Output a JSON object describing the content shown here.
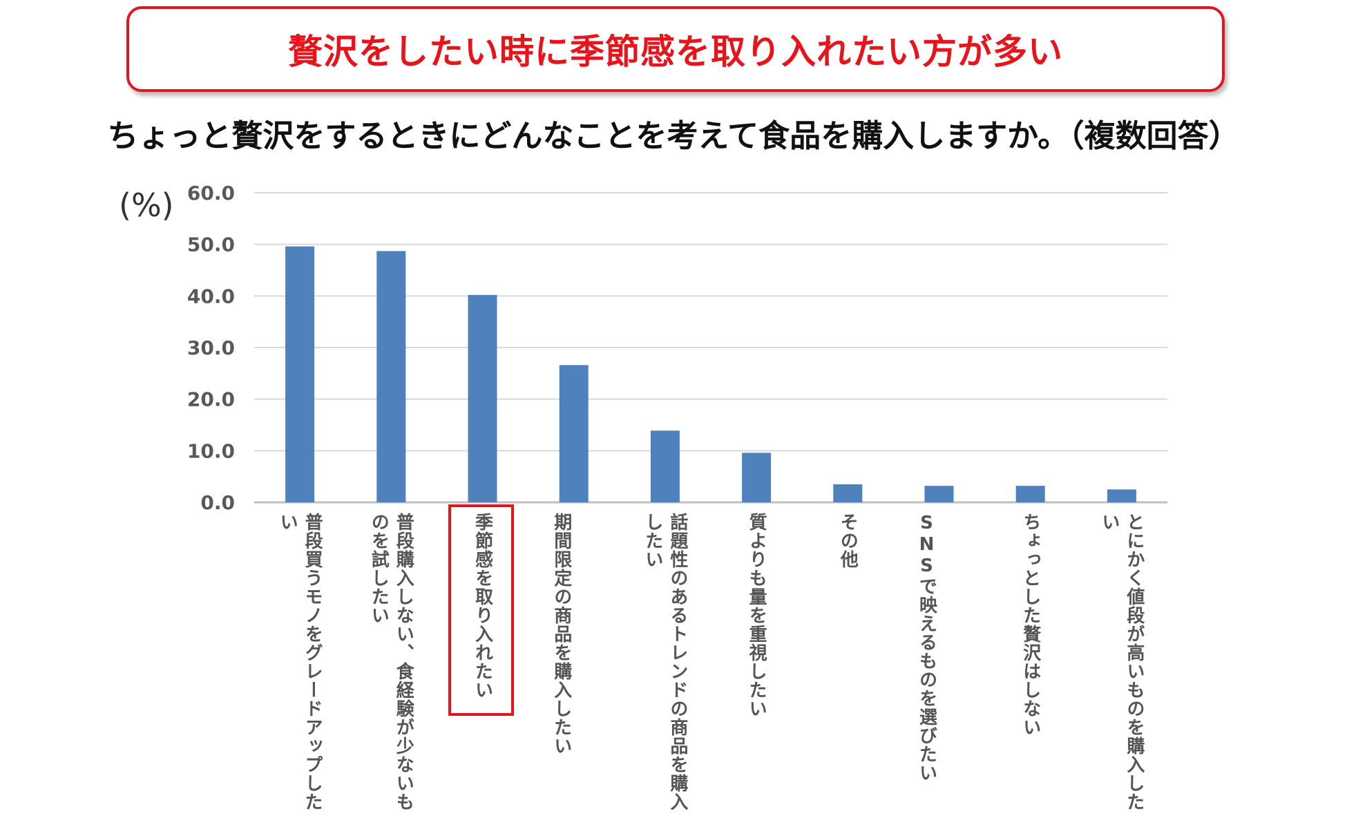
{
  "banner": {
    "text": "贅沢をしたい時に季節感を取り入れたい方が多い"
  },
  "subtitle": "ちょっと贅沢をするときにどんなことを考えて食品を購入しますか。（複数回答）",
  "colors": {
    "bar": "#4f81bd",
    "accent": "#e8141b",
    "grid": "#d9d9d9"
  },
  "chart_data": {
    "type": "bar",
    "unit_label": "(%)",
    "ylim": [
      0,
      60
    ],
    "yticks": [
      "0.0",
      "10.0",
      "20.0",
      "30.0",
      "40.0",
      "50.0",
      "60.0"
    ],
    "grid": true,
    "categories": [
      "普段買うモノをグレードアップしたい",
      "普段購入しない、食経験が少ないものを試したい",
      "季節感を取り入れたい",
      "期間限定の商品を購入したい",
      "話題性のあるトレンドの商品を購入したい",
      "質よりも量を重視したい",
      "その他",
      "SNSで映えるものを選びたい",
      "ちょっとした贅沢はしない",
      "とにかく値段が高いものを購入したい"
    ],
    "values": [
      49.6,
      48.7,
      40.2,
      26.6,
      13.9,
      9.6,
      3.5,
      3.2,
      3.2,
      2.5
    ],
    "highlighted_category_index": 2
  }
}
